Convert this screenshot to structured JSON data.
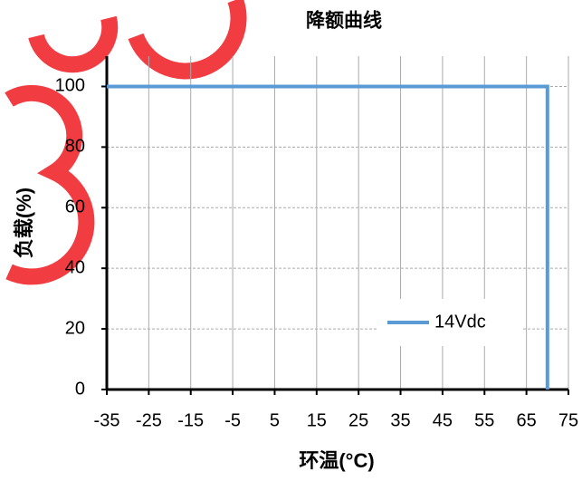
{
  "chart_data": {
    "type": "line",
    "title": "降额曲线",
    "x_label": "环温(°C)",
    "y_label": "负载(%)",
    "series": [
      {
        "name": "14Vdc",
        "color": "#5b9bd5",
        "x": [
          -35,
          70,
          70
        ],
        "values": [
          100,
          100,
          0
        ]
      }
    ],
    "xlim": [
      -35,
      75
    ],
    "xticks": [
      -35,
      -25,
      -15,
      -5,
      5,
      15,
      25,
      35,
      45,
      55,
      65,
      75
    ],
    "ylim": [
      0,
      110
    ],
    "yticks": [
      0,
      20,
      40,
      60,
      80,
      100
    ],
    "grid": true,
    "legend": "lower right"
  }
}
